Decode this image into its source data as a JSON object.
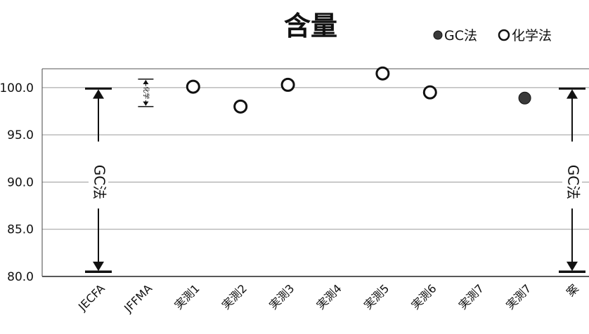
{
  "chart_data": {
    "type": "scatter",
    "title": "含量",
    "categories": [
      "JECFA",
      "JFFMA",
      "実測1",
      "実測2",
      "実測3",
      "実測4",
      "実測5",
      "実測6",
      "実測7",
      "実測7",
      "案"
    ],
    "ylim": [
      80,
      102
    ],
    "yticks": [
      "80.0",
      "85.0",
      "90.0",
      "95.0",
      "100.0"
    ],
    "grid": true,
    "legend_position": "top-right",
    "series": [
      {
        "name": "GC法",
        "marker": "filled-circle",
        "color": "#3a3a3a",
        "points": [
          {
            "category": 9,
            "value": 98.9
          }
        ]
      },
      {
        "name": "化学法",
        "marker": "open-circle",
        "color": "#111111",
        "points": [
          {
            "category": 2,
            "value": 100.1
          },
          {
            "category": 3,
            "value": 98.0
          },
          {
            "category": 4,
            "value": 100.3
          },
          {
            "category": 6,
            "value": 101.5
          },
          {
            "category": 7,
            "value": 99.5
          }
        ]
      }
    ],
    "ranges": [
      {
        "category": 0,
        "min": 80.5,
        "max": 99.9,
        "label": "GC法"
      },
      {
        "category": 1,
        "min": 98.0,
        "max": 100.9,
        "label": "化学"
      },
      {
        "category": 10,
        "min": 80.5,
        "max": 99.9,
        "label": "GC法"
      }
    ]
  }
}
